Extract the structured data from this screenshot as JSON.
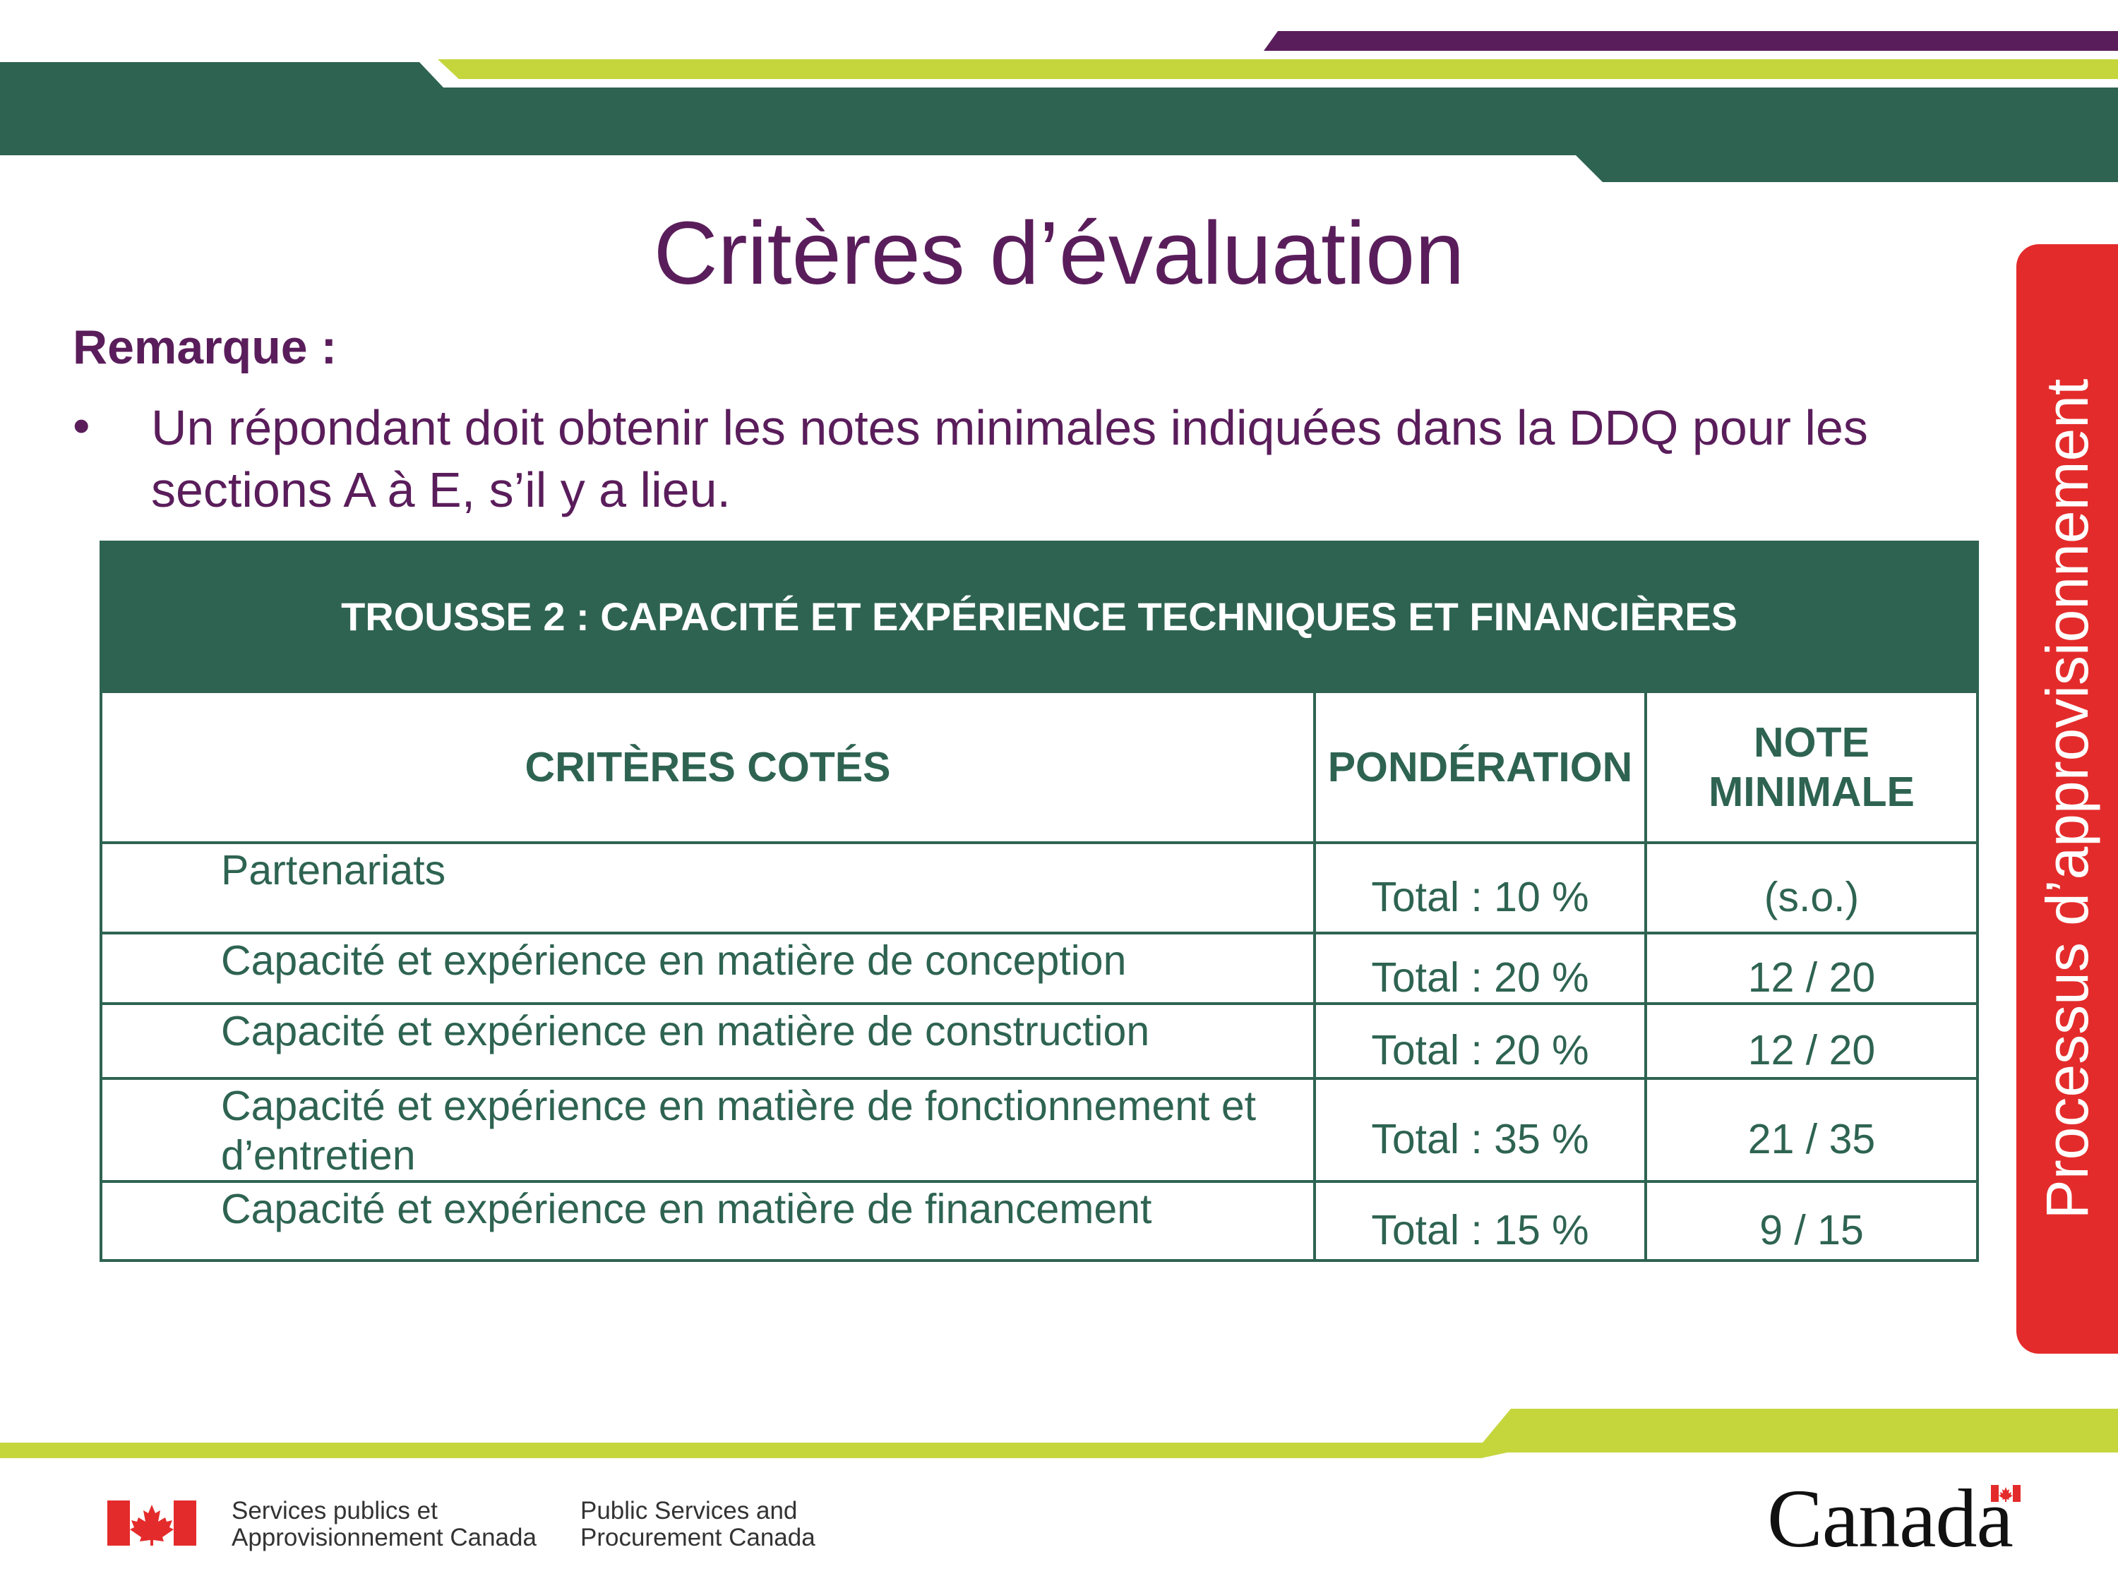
{
  "slide": {
    "title": "Critères d’évaluation",
    "remark_label": "Remarque :",
    "bullet_symbol": "•",
    "bullet_text": "Un répondant doit obtenir les notes minimales indiquées dans la DDQ pour les sections A à E, s’il y a lieu.",
    "side_label": "Processus d’approvisionnement"
  },
  "table": {
    "header": "TROUSSE 2 : CAPACITÉ ET EXPÉRIENCE TECHNIQUES ET FINANCIÈRES",
    "columns": [
      "CRITÈRES COTÉS",
      "PONDÉRATION",
      "NOTE MINIMALE"
    ],
    "rows": [
      {
        "criterion": "Partenariats",
        "weight": "Total : 10 %",
        "minimum": "(s.o.)"
      },
      {
        "criterion": "Capacité et expérience en matière de conception",
        "weight": "Total : 20 %",
        "minimum": "12 / 20"
      },
      {
        "criterion": "Capacité et expérience en matière de construction",
        "weight": "Total : 20 %",
        "minimum": "12 / 20"
      },
      {
        "criterion": "Capacité et expérience en matière de fonctionnement et d’entretien",
        "weight": "Total : 35 %",
        "minimum": "21 / 35"
      },
      {
        "criterion": "Capacité et expérience en matière de financement",
        "weight": "Total : 15 %",
        "minimum": "9 / 15"
      }
    ]
  },
  "footer": {
    "dept_fr": "Services publics et\nApprovisionnement Canada",
    "dept_en": "Public Services and\nProcurement Canada",
    "wordmark": "Canada"
  },
  "colors": {
    "green": "#2e6352",
    "lime": "#c5d63d",
    "purple": "#5a1d5b",
    "red": "#e42b2b"
  }
}
